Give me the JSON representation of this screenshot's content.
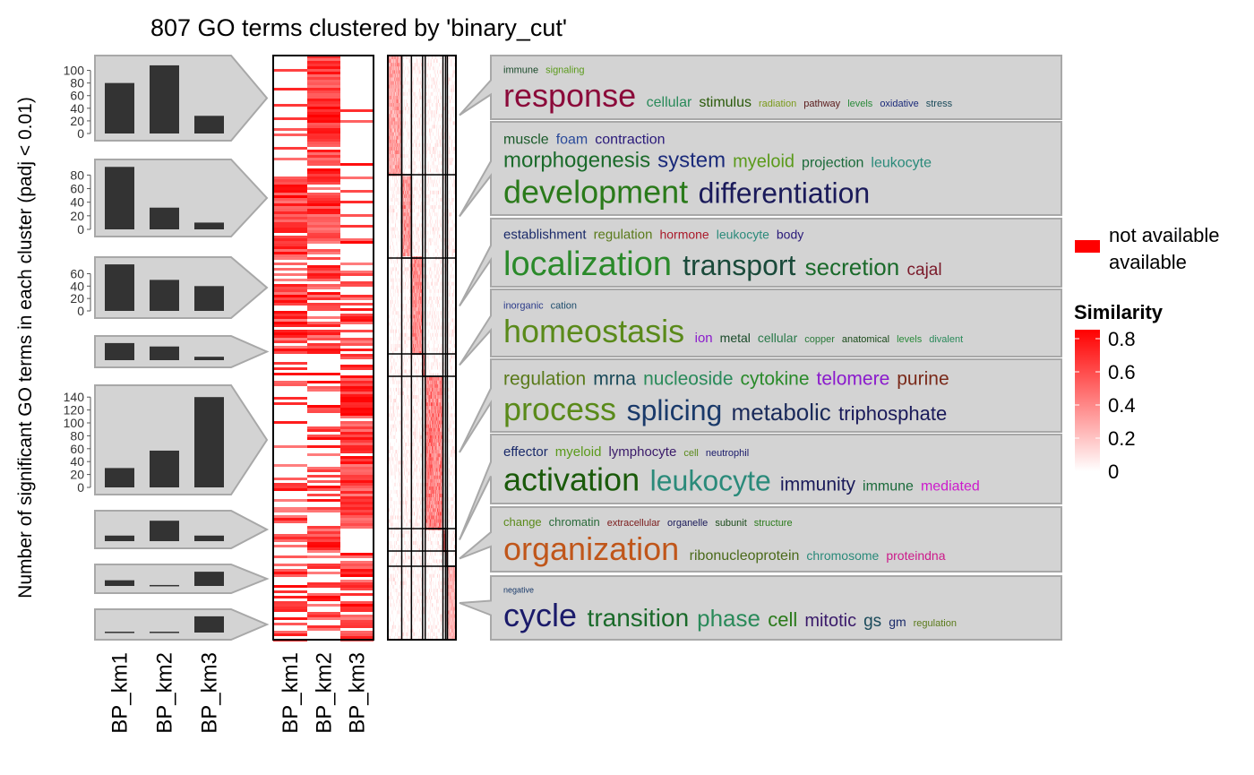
{
  "chart_data": {
    "type": "heatmap",
    "title": "807 GO terms clustered by 'binary_cut'",
    "ylabel": "Number of significant GO terms in each cluster (padj < 0.01)",
    "columns": [
      "BP_km1",
      "BP_km2",
      "BP_km3"
    ],
    "bar_panels": [
      {
        "ticks": [
          "0",
          "20",
          "40",
          "60",
          "80",
          "100"
        ],
        "ylim": [
          0,
          115
        ],
        "values": [
          80,
          108,
          28
        ]
      },
      {
        "ticks": [
          "0",
          "20",
          "40",
          "60",
          "80"
        ],
        "ylim": [
          0,
          95
        ],
        "values": [
          92,
          32,
          10
        ]
      },
      {
        "ticks": [
          "0",
          "20",
          "40",
          "60"
        ],
        "ylim": [
          0,
          78
        ],
        "values": [
          75,
          50,
          40
        ]
      },
      {
        "ticks": [],
        "ylim": [
          0,
          22
        ],
        "values": [
          20,
          16,
          4
        ]
      },
      {
        "ticks": [
          "0",
          "20",
          "40",
          "60",
          "80",
          "100",
          "120",
          "140"
        ],
        "ylim": [
          0,
          150
        ],
        "values": [
          30,
          57,
          140
        ]
      },
      {
        "ticks": [],
        "ylim": [
          0,
          27
        ],
        "values": [
          6,
          22,
          6
        ]
      },
      {
        "ticks": [],
        "ylim": [
          0,
          17
        ],
        "values": [
          6,
          1,
          15
        ]
      },
      {
        "ticks": [],
        "ylim": [
          0,
          21
        ],
        "values": [
          1,
          1,
          19
        ]
      }
    ],
    "clusters": [
      {
        "sim": 0.55,
        "words": [
          {
            "t": "immune",
            "s": 11,
            "c": "#1a4a2a",
            "l": 0
          },
          {
            "t": "signaling",
            "s": 11,
            "c": "#5a9a1a",
            "l": 0
          },
          {
            "t": "response",
            "s": 36,
            "c": "#8b0a3a",
            "l": 1
          },
          {
            "t": "cellular",
            "s": 16,
            "c": "#2a8a5a",
            "l": 1
          },
          {
            "t": "stimulus",
            "s": 16,
            "c": "#2a5a0a",
            "l": 1
          },
          {
            "t": "radiation",
            "s": 11,
            "c": "#7a9a1a",
            "l": 1
          },
          {
            "t": "pathway",
            "s": 11,
            "c": "#5a1a1a",
            "l": 1
          },
          {
            "t": "levels",
            "s": 11,
            "c": "#2a8a3a",
            "l": 1
          },
          {
            "t": "oxidative",
            "s": 11,
            "c": "#1a2a7a",
            "l": 1
          },
          {
            "t": "stress",
            "s": 11,
            "c": "#1a4a5a",
            "l": 1
          }
        ]
      },
      {
        "sim": 0.6,
        "words": [
          {
            "t": "muscle",
            "s": 16,
            "c": "#1a5a2a",
            "l": 0
          },
          {
            "t": "foam",
            "s": 16,
            "c": "#2a4a9a",
            "l": 0
          },
          {
            "t": "contraction",
            "s": 16,
            "c": "#2a1a7a",
            "l": 0
          },
          {
            "t": "morphogenesis",
            "s": 24,
            "c": "#1a6a2a",
            "l": 1
          },
          {
            "t": "system",
            "s": 24,
            "c": "#1a2a7a",
            "l": 1
          },
          {
            "t": "myeloid",
            "s": 20,
            "c": "#5a9a1a",
            "l": 1
          },
          {
            "t": "projection",
            "s": 16,
            "c": "#1a6a3a",
            "l": 1
          },
          {
            "t": "leukocyte",
            "s": 16,
            "c": "#2a8a7a",
            "l": 1
          },
          {
            "t": "development",
            "s": 36,
            "c": "#2a7a1a",
            "l": 2
          },
          {
            "t": "differentiation",
            "s": 32,
            "c": "#1a1a5a",
            "l": 2
          }
        ]
      },
      {
        "sim": 0.65,
        "words": [
          {
            "t": "establishment",
            "s": 15,
            "c": "#1a2a6a",
            "l": 0
          },
          {
            "t": "regulation",
            "s": 15,
            "c": "#5a7a1a",
            "l": 0
          },
          {
            "t": "hormone",
            "s": 14,
            "c": "#aa1a2a",
            "l": 0
          },
          {
            "t": "leukocyte",
            "s": 14,
            "c": "#2a8a7a",
            "l": 0
          },
          {
            "t": "body",
            "s": 14,
            "c": "#2a1a7a",
            "l": 0
          },
          {
            "t": "localization",
            "s": 38,
            "c": "#2a8a2a",
            "l": 1
          },
          {
            "t": "transport",
            "s": 32,
            "c": "#1a4a3a",
            "l": 1
          },
          {
            "t": "secretion",
            "s": 26,
            "c": "#1a6a2a",
            "l": 1
          },
          {
            "t": "cajal",
            "s": 19,
            "c": "#7a1a2a",
            "l": 1
          }
        ]
      },
      {
        "sim": 0.7,
        "words": [
          {
            "t": "inorganic",
            "s": 11,
            "c": "#2a3a8a",
            "l": 0
          },
          {
            "t": "cation",
            "s": 11,
            "c": "#1a4a6a",
            "l": 0
          },
          {
            "t": "homeostasis",
            "s": 36,
            "c": "#5a8a1a",
            "l": 1
          },
          {
            "t": "ion",
            "s": 15,
            "c": "#8a1acc",
            "l": 1
          },
          {
            "t": "metal",
            "s": 14,
            "c": "#1a4a2a",
            "l": 1
          },
          {
            "t": "cellular",
            "s": 14,
            "c": "#2a7a4a",
            "l": 1
          },
          {
            "t": "copper",
            "s": 11,
            "c": "#2a7a3a",
            "l": 1
          },
          {
            "t": "anatomical",
            "s": 11,
            "c": "#1a4a1a",
            "l": 1
          },
          {
            "t": "levels",
            "s": 11,
            "c": "#2a8a3a",
            "l": 1
          },
          {
            "t": "divalent",
            "s": 11,
            "c": "#2a8a5a",
            "l": 1
          }
        ]
      },
      {
        "sim": 0.75,
        "words": [
          {
            "t": "regulation",
            "s": 21,
            "c": "#5a7a1a",
            "l": 0
          },
          {
            "t": "mrna",
            "s": 21,
            "c": "#1a4a5a",
            "l": 0
          },
          {
            "t": "nucleoside",
            "s": 21,
            "c": "#2a8a5a",
            "l": 0
          },
          {
            "t": "cytokine",
            "s": 21,
            "c": "#2a8a2a",
            "l": 0
          },
          {
            "t": "telomere",
            "s": 21,
            "c": "#8a1acc",
            "l": 0
          },
          {
            "t": "purine",
            "s": 21,
            "c": "#7a2a1a",
            "l": 0
          },
          {
            "t": "process",
            "s": 36,
            "c": "#5a8a1a",
            "l": 1
          },
          {
            "t": "splicing",
            "s": 32,
            "c": "#1a3a6a",
            "l": 1
          },
          {
            "t": "metabolic",
            "s": 26,
            "c": "#1a2a5a",
            "l": 1
          },
          {
            "t": "triphosphate",
            "s": 22,
            "c": "#1a1a5a",
            "l": 1
          }
        ]
      },
      {
        "sim": 0.8,
        "words": [
          {
            "t": "effector",
            "s": 15,
            "c": "#1a2a6a",
            "l": 0
          },
          {
            "t": "myeloid",
            "s": 15,
            "c": "#5a9a1a",
            "l": 0
          },
          {
            "t": "lymphocyte",
            "s": 15,
            "c": "#3a1a6a",
            "l": 0
          },
          {
            "t": "cell",
            "s": 11,
            "c": "#5a8a1a",
            "l": 0
          },
          {
            "t": "neutrophil",
            "s": 11,
            "c": "#1a1a6a",
            "l": 0
          },
          {
            "t": "activation",
            "s": 36,
            "c": "#1a5a0a",
            "l": 1
          },
          {
            "t": "leukocyte",
            "s": 32,
            "c": "#2a8a7a",
            "l": 1
          },
          {
            "t": "immunity",
            "s": 21,
            "c": "#1a1a5a",
            "l": 1
          },
          {
            "t": "immune",
            "s": 16,
            "c": "#1a6a3a",
            "l": 1
          },
          {
            "t": "mediated",
            "s": 16,
            "c": "#cc1acc",
            "l": 1
          }
        ]
      },
      {
        "sim": 0.5,
        "words": [
          {
            "t": "change",
            "s": 13,
            "c": "#5a8a1a",
            "l": 0
          },
          {
            "t": "chromatin",
            "s": 13,
            "c": "#2a6a3a",
            "l": 0
          },
          {
            "t": "extracellular",
            "s": 11,
            "c": "#7a1a1a",
            "l": 0
          },
          {
            "t": "organelle",
            "s": 11,
            "c": "#1a1a5a",
            "l": 0
          },
          {
            "t": "subunit",
            "s": 11,
            "c": "#1a4a1a",
            "l": 0
          },
          {
            "t": "structure",
            "s": 11,
            "c": "#2a7a1a",
            "l": 0
          },
          {
            "t": "organization",
            "s": 36,
            "c": "#c0561a",
            "l": 1
          },
          {
            "t": "ribonucleoprotein",
            "s": 16,
            "c": "#4a6a1a",
            "l": 1
          },
          {
            "t": "chromosome",
            "s": 14,
            "c": "#2a8a7a",
            "l": 1
          },
          {
            "t": "proteindna",
            "s": 14,
            "c": "#cc1a8a",
            "l": 1
          }
        ]
      },
      {
        "sim": 0.45,
        "words": [
          {
            "t": "negative",
            "s": 9,
            "c": "#1a3a6a",
            "l": 0
          },
          {
            "t": "cycle",
            "s": 36,
            "c": "#1a1a6a",
            "l": 1
          },
          {
            "t": "transition",
            "s": 28,
            "c": "#1a6a2a",
            "l": 1
          },
          {
            "t": "phase",
            "s": 26,
            "c": "#2a8a5a",
            "l": 1
          },
          {
            "t": "cell",
            "s": 22,
            "c": "#2a7a1a",
            "l": 1
          },
          {
            "t": "mitotic",
            "s": 20,
            "c": "#3a1a6a",
            "l": 1
          },
          {
            "t": "gs",
            "s": 19,
            "c": "#1a4a5a",
            "l": 1
          },
          {
            "t": "gm",
            "s": 14,
            "c": "#1a2a6a",
            "l": 1
          },
          {
            "t": "regulation",
            "s": 11,
            "c": "#5a7a1a",
            "l": 1
          }
        ]
      }
    ],
    "legend_availability": {
      "items": [
        "not available",
        "available"
      ],
      "colors": [
        "#ffffff",
        "#ff0000"
      ]
    },
    "legend_similarity": {
      "title": "Similarity",
      "ticks": [
        "0",
        "0.2",
        "0.4",
        "0.6",
        "0.8"
      ],
      "range": [
        0,
        0.8
      ]
    }
  }
}
